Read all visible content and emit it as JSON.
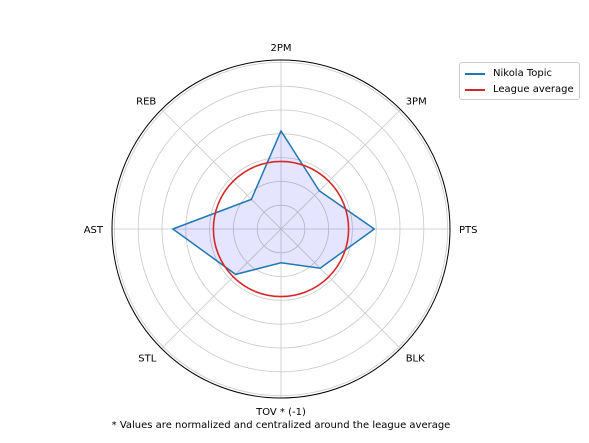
{
  "chart_data": {
    "type": "radar",
    "axes": [
      "PTS",
      "3PM",
      "2PM",
      "REB",
      "AST",
      "STL",
      "TOV * (-1)",
      "BLK"
    ],
    "series": [
      {
        "name": "Nikola Topic",
        "values": [
          1.38,
          0.8,
          1.45,
          0.62,
          1.6,
          0.95,
          0.5,
          0.82
        ],
        "color": "#1f77b4",
        "fill": "#0000ff"
      },
      {
        "name": "League average",
        "values": [
          1,
          1,
          1,
          1,
          1,
          1,
          1,
          1
        ],
        "color": "#d62728"
      }
    ],
    "rlim": [
      0,
      2.5
    ],
    "grid": true,
    "legend_position": "top-right"
  },
  "footnote": "* Values are normalized and centralized around the league average"
}
